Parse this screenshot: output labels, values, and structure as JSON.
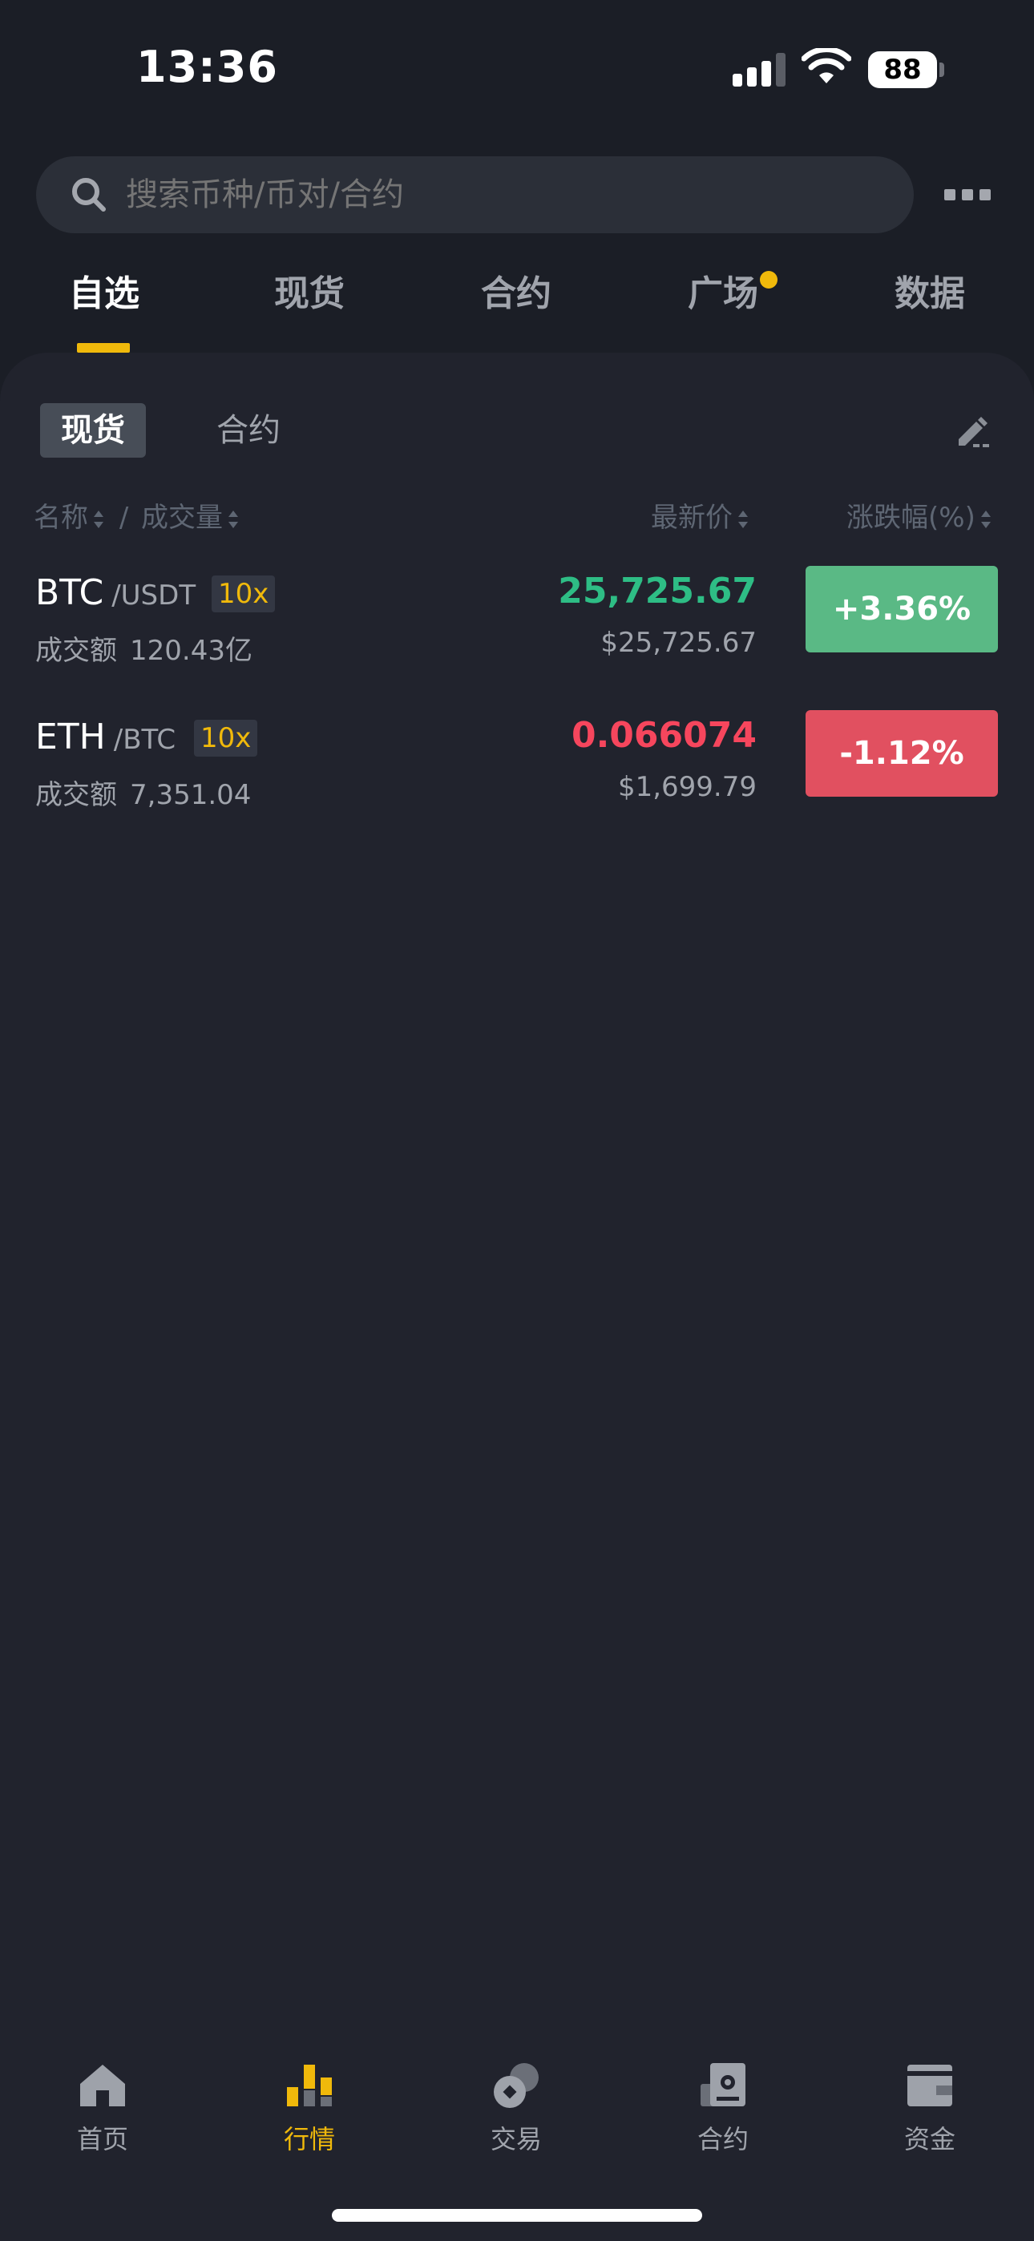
{
  "status_bar": {
    "time": "13:36",
    "battery": "88"
  },
  "search": {
    "placeholder": "搜索币种/币对/合约"
  },
  "top_tabs": [
    {
      "label": "自选",
      "active": true
    },
    {
      "label": "现货",
      "active": false
    },
    {
      "label": "合约",
      "active": false
    },
    {
      "label": "广场",
      "active": false,
      "has_dot": true
    },
    {
      "label": "数据",
      "active": false
    }
  ],
  "sub_tabs": [
    {
      "label": "现货",
      "active": true
    },
    {
      "label": "合约",
      "active": false
    }
  ],
  "columns": {
    "name": "名称",
    "separator": "/",
    "volume": "成交量",
    "last_price": "最新价",
    "change": "涨跌幅(%)"
  },
  "rows": [
    {
      "base": "BTC",
      "quote": "/USDT",
      "leverage": "10x",
      "volume_label": "成交额",
      "volume_value": "120.43亿",
      "price": "25,725.67",
      "usd_price": "$25,725.67",
      "change": "+3.36%",
      "direction": "up"
    },
    {
      "base": "ETH",
      "quote": "/BTC",
      "leverage": "10x",
      "volume_label": "成交额",
      "volume_value": "7,351.04",
      "price": "0.066074",
      "usd_price": "$1,699.79",
      "change": "-1.12%",
      "direction": "down"
    }
  ],
  "bottom_nav": [
    {
      "label": "首页",
      "icon": "home-icon",
      "active": false
    },
    {
      "label": "行情",
      "icon": "market-chart-icon",
      "active": true
    },
    {
      "label": "交易",
      "icon": "trade-coins-icon",
      "active": false
    },
    {
      "label": "合约",
      "icon": "futures-icon",
      "active": false
    },
    {
      "label": "资金",
      "icon": "wallet-icon",
      "active": false
    }
  ],
  "colors": {
    "background": "#1b1e26",
    "panel": "#21232d",
    "accent": "#f0b90b",
    "up": "#2ebd85",
    "down": "#f6465d"
  }
}
